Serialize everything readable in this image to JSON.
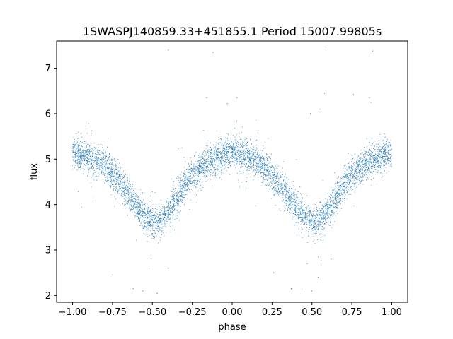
{
  "chart_data": {
    "type": "scatter",
    "title": "1SWASPJ140859.33+451855.1 Period 15007.99805s",
    "xlabel": "phase",
    "ylabel": "flux",
    "xlim": [
      -1.1,
      1.1
    ],
    "ylim": [
      1.85,
      7.6
    ],
    "xticks": [
      -1.0,
      -0.75,
      -0.5,
      -0.25,
      0.0,
      0.25,
      0.5,
      0.75,
      1.0
    ],
    "xtick_labels": [
      "−1.00",
      "−0.75",
      "−0.50",
      "−0.25",
      "0.00",
      "0.25",
      "0.50",
      "0.75",
      "1.00"
    ],
    "yticks": [
      2,
      3,
      4,
      5,
      6,
      7
    ],
    "ytick_labels": [
      "2",
      "3",
      "4",
      "5",
      "6",
      "7"
    ],
    "grid": false,
    "legend": "none",
    "marker_color": "#1f77b4",
    "series": [
      {
        "x": [
          -1.0,
          -0.95,
          -0.9,
          -0.85,
          -0.8,
          -0.75,
          -0.7,
          -0.65,
          -0.6,
          -0.55,
          -0.5,
          -0.45,
          -0.4,
          -0.35,
          -0.3,
          -0.25,
          -0.2,
          -0.15,
          -0.1,
          -0.05,
          0.0,
          0.05,
          0.1,
          0.15,
          0.2,
          0.25,
          0.3,
          0.35,
          0.4,
          0.45,
          0.5,
          0.55,
          0.6,
          0.65,
          0.7,
          0.75,
          0.8,
          0.85,
          0.9,
          0.95,
          1.0
        ],
        "y": [
          5.12,
          5.1,
          5.05,
          4.97,
          4.87,
          4.7,
          4.5,
          4.25,
          3.98,
          3.72,
          3.6,
          3.62,
          3.82,
          4.13,
          4.4,
          4.63,
          4.8,
          4.93,
          5.03,
          5.1,
          5.13,
          5.1,
          5.03,
          4.95,
          4.83,
          4.66,
          4.45,
          4.2,
          3.95,
          3.72,
          3.6,
          3.62,
          3.82,
          4.13,
          4.4,
          4.63,
          4.8,
          4.93,
          5.03,
          5.1,
          5.13
        ]
      }
    ],
    "outliers": [
      {
        "x": -0.4,
        "y": 7.4
      },
      {
        "x": -0.12,
        "y": 7.35
      },
      {
        "x": 0.6,
        "y": 7.42
      },
      {
        "x": 0.88,
        "y": 7.38
      },
      {
        "x": -0.16,
        "y": 6.35
      },
      {
        "x": 0.03,
        "y": 6.35
      },
      {
        "x": -0.03,
        "y": 6.22
      },
      {
        "x": 0.58,
        "y": 6.45
      },
      {
        "x": 0.76,
        "y": 6.42
      },
      {
        "x": 0.86,
        "y": 6.35
      },
      {
        "x": 0.87,
        "y": 6.25
      },
      {
        "x": 0.55,
        "y": 6.1
      },
      {
        "x": 0.49,
        "y": 6.0
      },
      {
        "x": -0.62,
        "y": 2.15
      },
      {
        "x": -0.56,
        "y": 2.1
      },
      {
        "x": -0.47,
        "y": 2.05
      },
      {
        "x": 0.37,
        "y": 2.15
      },
      {
        "x": 0.45,
        "y": 2.08
      },
      {
        "x": 0.5,
        "y": 2.1
      },
      {
        "x": 0.54,
        "y": 2.4
      },
      {
        "x": -0.75,
        "y": 2.45
      },
      {
        "x": 0.26,
        "y": 2.5
      },
      {
        "x": -0.4,
        "y": 2.6
      },
      {
        "x": -0.52,
        "y": 2.65
      },
      {
        "x": 0.47,
        "y": 2.7
      },
      {
        "x": 0.62,
        "y": 2.8
      }
    ]
  }
}
